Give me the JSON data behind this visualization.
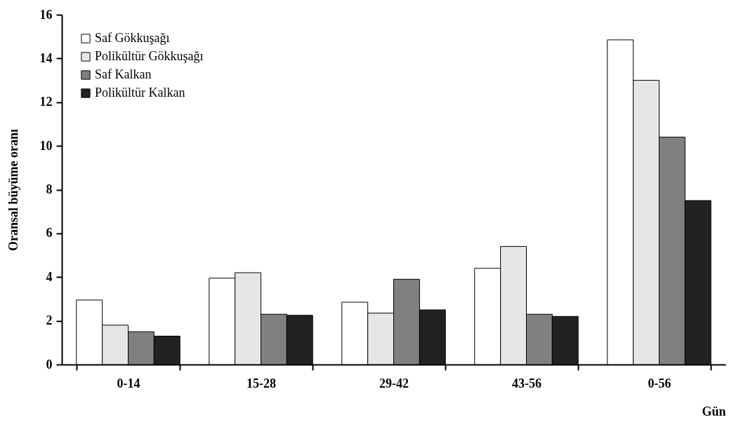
{
  "chart_data": {
    "type": "bar",
    "xlabel": "Gün",
    "ylabel": "Oransal büyüme oranı",
    "categories": [
      "0-14",
      "15-28",
      "29-42",
      "43-56",
      "0-56"
    ],
    "series": [
      {
        "name": "Saf Gökkuşağı",
        "color": "#ffffff",
        "values": [
          2.95,
          3.95,
          2.85,
          4.4,
          14.85
        ]
      },
      {
        "name": "Polikültür Gökkuşağı",
        "color": "#e6e6e6",
        "values": [
          1.8,
          4.2,
          2.35,
          5.4,
          13.0
        ]
      },
      {
        "name": "Saf Kalkan",
        "color": "#808080",
        "values": [
          1.5,
          2.3,
          3.9,
          2.3,
          10.4
        ]
      },
      {
        "name": "Polikültür Kalkan",
        "color": "#222222",
        "values": [
          1.3,
          2.25,
          2.5,
          2.2,
          7.5
        ]
      }
    ],
    "ylim": [
      0,
      16
    ],
    "yticks": [
      0,
      2,
      4,
      6,
      8,
      10,
      12,
      14,
      16
    ],
    "legend": "top left"
  }
}
